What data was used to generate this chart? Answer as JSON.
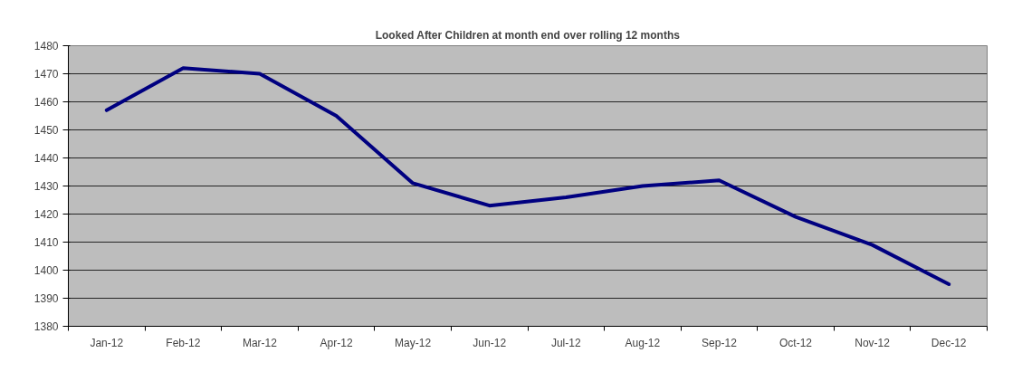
{
  "chart_data": {
    "type": "line",
    "title": "Looked After Children at month end over rolling 12 months",
    "categories": [
      "Jan-12",
      "Feb-12",
      "Mar-12",
      "Apr-12",
      "May-12",
      "Jun-12",
      "Jul-12",
      "Aug-12",
      "Sep-12",
      "Oct-12",
      "Nov-12",
      "Dec-12"
    ],
    "series": [
      {
        "color": "#000080",
        "values": [
          1457,
          1472,
          1470,
          1455,
          1431,
          1423,
          1426,
          1430,
          1432,
          1419,
          1409,
          1395
        ]
      }
    ],
    "ylim": [
      1380,
      1480
    ],
    "yticks": [
      1380,
      1390,
      1400,
      1410,
      1420,
      1430,
      1440,
      1450,
      1460,
      1470,
      1480
    ],
    "grid": "y",
    "line_style": "solid"
  }
}
